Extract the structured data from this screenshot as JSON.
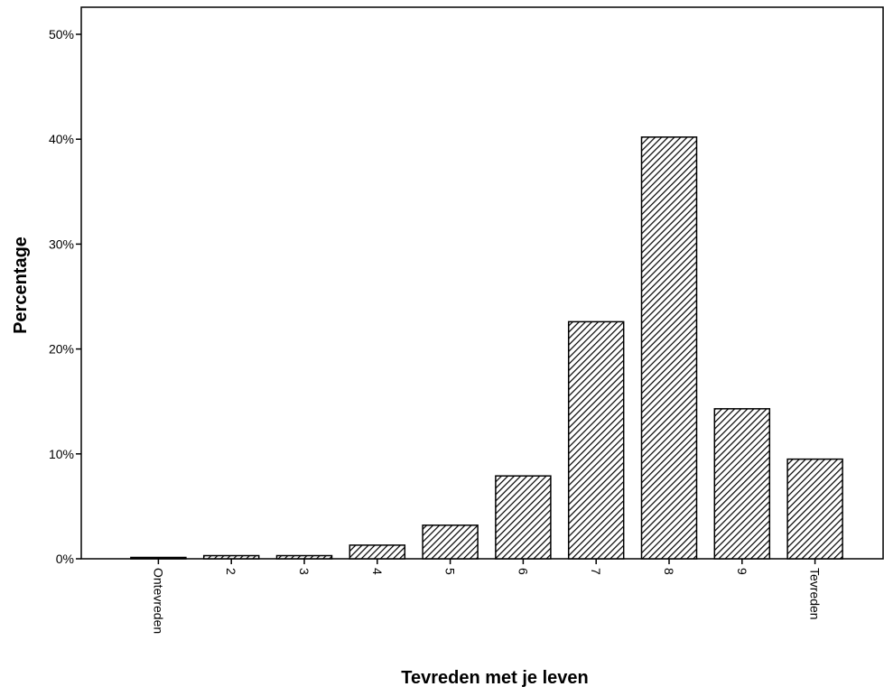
{
  "chart_data": {
    "type": "bar",
    "title": "",
    "xlabel": "Tevreden met je leven",
    "ylabel": "Percentage",
    "categories": [
      "Ontevreden",
      "2",
      "3",
      "4",
      "5",
      "6",
      "7",
      "8",
      "9",
      "Tevreden"
    ],
    "values": [
      0.1,
      0.3,
      0.3,
      1.3,
      3.2,
      7.9,
      22.6,
      40.2,
      14.3,
      9.5
    ],
    "ylim": [
      0,
      52
    ],
    "yticks": [
      0,
      10,
      20,
      30,
      40,
      50
    ],
    "ytick_labels": [
      "0%",
      "10%",
      "20%",
      "30%",
      "40%",
      "50%"
    ],
    "bar_fill": "hatched",
    "grid": false,
    "legend": "none",
    "colors": {
      "bar_stroke": "#000000",
      "hatch": "#000000",
      "background": "#ffffff"
    }
  }
}
